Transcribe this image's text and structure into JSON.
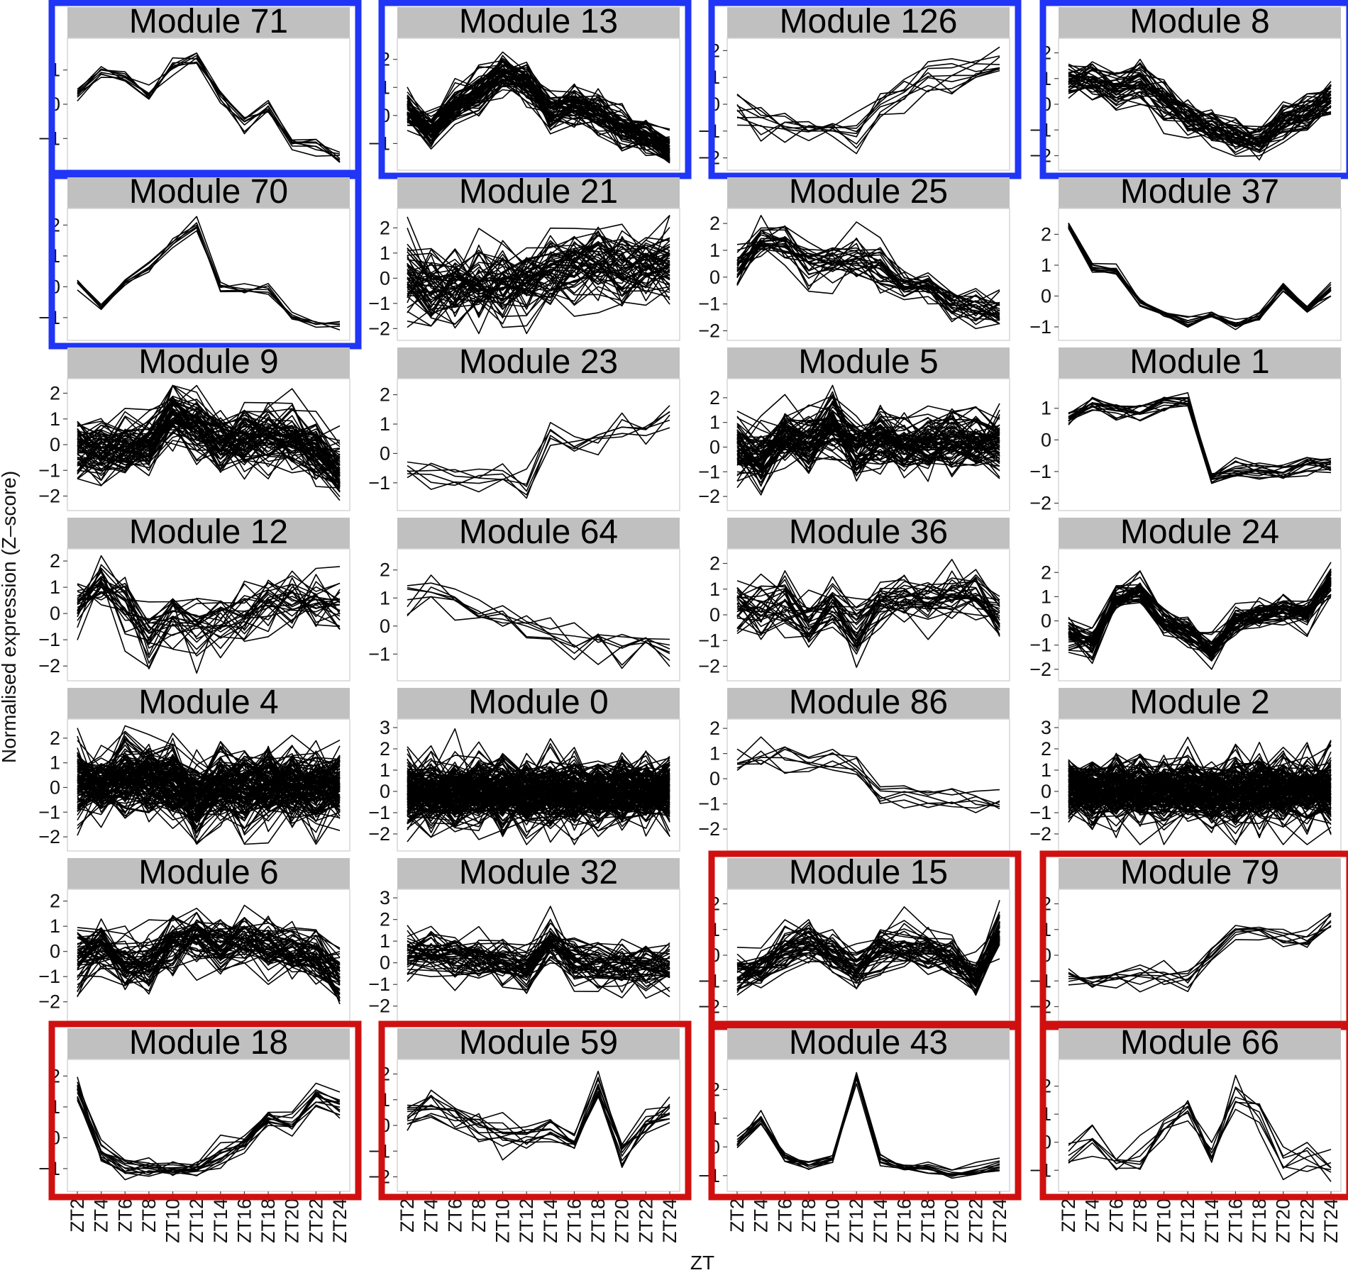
{
  "chart_data": {
    "type": "line",
    "layout": "faceted small multiples, 4 columns x 7 rows",
    "x_ticks": [
      "ZT2",
      "ZT4",
      "ZT6",
      "ZT8",
      "ZT10",
      "ZT12",
      "ZT14",
      "ZT16",
      "ZT18",
      "ZT20",
      "ZT22",
      "ZT24"
    ],
    "xlabel": "ZT",
    "ylabel": "Normalised expression (Z–score)",
    "line_color": "#000000",
    "strip_color": "#c0c0c0",
    "highlight_colors": {
      "blue": "#2035f5",
      "red": "#d01010"
    },
    "grid": false,
    "panels": [
      {
        "title": "Module 71",
        "highlight": "blue",
        "ylim": [
          -1.8,
          1.8
        ],
        "yticks": [
          "1",
          "0",
          "−1"
        ],
        "ytick_values": [
          1,
          0,
          -1
        ],
        "xtick_labels": false,
        "n_lines": 8,
        "noise": 0.18,
        "profile": [
          0.3,
          0.9,
          0.7,
          0.3,
          1.1,
          1.4,
          0.2,
          -0.6,
          -0.1,
          -1.1,
          -1.3,
          -1.6
        ]
      },
      {
        "title": "Module 13",
        "highlight": "blue",
        "ylim": [
          -1.8,
          2.6
        ],
        "yticks": [
          "2",
          "1",
          "0",
          "−1"
        ],
        "ytick_values": [
          2,
          1,
          0,
          -1
        ],
        "xtick_labels": false,
        "n_lines": 60,
        "noise": 0.45,
        "profile": [
          0.2,
          -0.6,
          0.4,
          0.8,
          1.5,
          1.2,
          0.2,
          0.3,
          0.1,
          -0.4,
          -0.8,
          -1.3
        ]
      },
      {
        "title": "Module 126",
        "highlight": "blue",
        "ylim": [
          -2.3,
          2.3
        ],
        "yticks": [
          "2",
          "1",
          "0",
          "−1",
          "−2"
        ],
        "ytick_values": [
          2,
          1,
          0,
          -1,
          -2
        ],
        "xtick_labels": false,
        "n_lines": 9,
        "noise": 0.4,
        "profile": [
          -0.2,
          -0.7,
          -0.8,
          -0.9,
          -0.9,
          -1.0,
          0.0,
          0.4,
          0.8,
          1.1,
          1.3,
          1.6
        ]
      },
      {
        "title": "Module 8",
        "highlight": "blue",
        "ylim": [
          -2.4,
          2.4
        ],
        "yticks": [
          "2",
          "1",
          "0",
          "−1",
          "−2"
        ],
        "ytick_values": [
          2,
          1,
          0,
          -1,
          -2
        ],
        "xtick_labels": false,
        "n_lines": 40,
        "noise": 0.5,
        "profile": [
          0.9,
          1.0,
          0.7,
          0.9,
          0.2,
          -0.4,
          -0.9,
          -1.2,
          -1.4,
          -0.7,
          -0.2,
          0.3
        ]
      },
      {
        "title": "Module 70",
        "highlight": "blue",
        "ylim": [
          -1.6,
          2.4
        ],
        "yticks": [
          "2",
          "1",
          "0",
          "−1"
        ],
        "ytick_values": [
          2,
          1,
          0,
          -1
        ],
        "xtick_labels": false,
        "n_lines": 6,
        "noise": 0.15,
        "profile": [
          0.1,
          -0.7,
          0.1,
          0.6,
          1.4,
          2.0,
          0.0,
          -0.1,
          -0.1,
          -0.9,
          -1.2,
          -1.3
        ]
      },
      {
        "title": "Module 21",
        "highlight": null,
        "ylim": [
          -2.3,
          2.6
        ],
        "yticks": [
          "2",
          "1",
          "0",
          "−1",
          "−2"
        ],
        "ytick_values": [
          2,
          1,
          0,
          -1,
          -2
        ],
        "xtick_labels": false,
        "n_lines": 55,
        "noise": 1.0,
        "profile": [
          0.0,
          -0.6,
          -0.4,
          -0.3,
          -0.2,
          0.0,
          0.2,
          0.5,
          0.6,
          0.4,
          0.4,
          0.5
        ]
      },
      {
        "title": "Module 25",
        "highlight": null,
        "ylim": [
          -2.2,
          2.4
        ],
        "yticks": [
          "2",
          "1",
          "0",
          "−1",
          "−2"
        ],
        "ytick_values": [
          2,
          1,
          0,
          -1,
          -2
        ],
        "xtick_labels": false,
        "n_lines": 28,
        "noise": 0.5,
        "profile": [
          0.4,
          1.4,
          1.3,
          0.6,
          0.6,
          0.8,
          0.4,
          -0.2,
          -0.3,
          -1.0,
          -1.1,
          -1.3
        ]
      },
      {
        "title": "Module 37",
        "highlight": null,
        "ylim": [
          -1.3,
          2.7
        ],
        "yticks": [
          "2",
          "1",
          "0",
          "−1"
        ],
        "ytick_values": [
          2,
          1,
          0,
          -1
        ],
        "xtick_labels": false,
        "n_lines": 10,
        "noise": 0.12,
        "profile": [
          2.3,
          0.9,
          0.8,
          -0.2,
          -0.6,
          -0.9,
          -0.6,
          -0.9,
          -0.7,
          0.3,
          -0.5,
          0.2
        ]
      },
      {
        "title": "Module 9",
        "highlight": null,
        "ylim": [
          -2.4,
          2.4
        ],
        "yticks": [
          "2",
          "1",
          "0",
          "−1",
          "−2"
        ],
        "ytick_values": [
          2,
          1,
          0,
          -1,
          -2
        ],
        "xtick_labels": false,
        "n_lines": 70,
        "noise": 0.8,
        "profile": [
          -0.3,
          -0.2,
          -0.1,
          0.1,
          1.2,
          0.7,
          0.0,
          0.3,
          0.3,
          0.2,
          -0.2,
          -1.0
        ]
      },
      {
        "title": "Module 23",
        "highlight": null,
        "ylim": [
          -1.8,
          2.4
        ],
        "yticks": [
          "2",
          "1",
          "0",
          "−1"
        ],
        "ytick_values": [
          2,
          1,
          0,
          -1
        ],
        "xtick_labels": false,
        "n_lines": 6,
        "noise": 0.35,
        "profile": [
          -0.6,
          -0.8,
          -0.9,
          -0.7,
          -0.9,
          -1.1,
          0.6,
          0.4,
          0.6,
          0.9,
          0.8,
          1.3
        ]
      },
      {
        "title": "Module 5",
        "highlight": null,
        "ylim": [
          -2.4,
          2.6
        ],
        "yticks": [
          "2",
          "1",
          "0",
          "−1",
          "−2"
        ],
        "ytick_values": [
          2,
          1,
          0,
          -1,
          -2
        ],
        "xtick_labels": false,
        "n_lines": 70,
        "noise": 0.8,
        "profile": [
          0.0,
          -0.4,
          0.3,
          0.2,
          0.9,
          -0.2,
          0.3,
          0.0,
          0.2,
          0.3,
          0.3,
          0.2
        ]
      },
      {
        "title": "Module 1",
        "highlight": null,
        "ylim": [
          -2.1,
          1.8
        ],
        "yticks": [
          "1",
          "0",
          "−1",
          "−2"
        ],
        "ytick_values": [
          1,
          0,
          -1,
          -2
        ],
        "xtick_labels": false,
        "n_lines": 14,
        "noise": 0.2,
        "profile": [
          0.7,
          1.1,
          0.9,
          0.8,
          1.1,
          1.2,
          -1.2,
          -0.9,
          -1.0,
          -1.0,
          -0.8,
          -0.8
        ]
      },
      {
        "title": "Module 12",
        "highlight": null,
        "ylim": [
          -2.4,
          2.3
        ],
        "yticks": [
          "2",
          "1",
          "0",
          "−1",
          "−2"
        ],
        "ytick_values": [
          2,
          1,
          0,
          -1,
          -2
        ],
        "xtick_labels": false,
        "n_lines": 26,
        "noise": 0.8,
        "profile": [
          0.3,
          1.2,
          0.3,
          -0.7,
          0.0,
          -0.5,
          -0.2,
          0.0,
          0.3,
          0.5,
          0.6,
          0.4
        ]
      },
      {
        "title": "Module 64",
        "highlight": null,
        "ylim": [
          -1.8,
          2.6
        ],
        "yticks": [
          "2",
          "1",
          "0",
          "−1"
        ],
        "ytick_values": [
          2,
          1,
          0,
          -1
        ],
        "xtick_labels": false,
        "n_lines": 7,
        "noise": 0.45,
        "profile": [
          0.9,
          1.2,
          0.7,
          0.4,
          0.2,
          0.1,
          -0.3,
          -0.5,
          -0.5,
          -0.7,
          -0.6,
          -1.0
        ]
      },
      {
        "title": "Module 36",
        "highlight": null,
        "ylim": [
          -2.4,
          2.4
        ],
        "yticks": [
          "2",
          "1",
          "0",
          "−1",
          "−2"
        ],
        "ytick_values": [
          2,
          1,
          0,
          -1,
          -2
        ],
        "xtick_labels": false,
        "n_lines": 30,
        "noise": 0.7,
        "profile": [
          0.3,
          0.2,
          0.5,
          -0.5,
          0.3,
          -0.7,
          0.5,
          0.6,
          0.6,
          0.8,
          0.7,
          -0.1
        ]
      },
      {
        "title": "Module 24",
        "highlight": null,
        "ylim": [
          -2.3,
          2.8
        ],
        "yticks": [
          "2",
          "1",
          "0",
          "−1",
          "−2"
        ],
        "ytick_values": [
          2,
          1,
          0,
          -1,
          -2
        ],
        "xtick_labels": false,
        "n_lines": 40,
        "noise": 0.45,
        "profile": [
          -0.6,
          -1.0,
          0.8,
          1.2,
          0.0,
          -0.4,
          -1.2,
          0.0,
          0.3,
          0.4,
          0.3,
          1.6
        ]
      },
      {
        "title": "Module 4",
        "highlight": null,
        "ylim": [
          -2.4,
          2.6
        ],
        "yticks": [
          "2",
          "1",
          "0",
          "−1",
          "−2"
        ],
        "ytick_values": [
          2,
          1,
          0,
          -1,
          -2
        ],
        "xtick_labels": false,
        "n_lines": 120,
        "noise": 1.0,
        "profile": [
          0.2,
          0.1,
          0.3,
          0.4,
          0.3,
          -0.6,
          0.1,
          -0.1,
          0.0,
          0.0,
          0.0,
          0.3
        ]
      },
      {
        "title": "Module 0",
        "highlight": null,
        "ylim": [
          -2.6,
          3.2
        ],
        "yticks": [
          "3",
          "2",
          "1",
          "0",
          "−1",
          "−2"
        ],
        "ytick_values": [
          3,
          2,
          1,
          0,
          -1,
          -2
        ],
        "xtick_labels": false,
        "n_lines": 160,
        "noise": 1.05,
        "profile": [
          0.0,
          0.0,
          0.0,
          0.0,
          0.0,
          0.0,
          0.0,
          0.0,
          0.0,
          0.0,
          0.0,
          0.0
        ]
      },
      {
        "title": "Module 86",
        "highlight": null,
        "ylim": [
          -2.7,
          2.2
        ],
        "yticks": [
          "2",
          "1",
          "0",
          "−1",
          "−2"
        ],
        "ytick_values": [
          2,
          1,
          0,
          -1,
          -2
        ],
        "xtick_labels": false,
        "n_lines": 7,
        "noise": 0.4,
        "profile": [
          0.7,
          0.9,
          0.8,
          0.6,
          0.8,
          0.6,
          -0.5,
          -0.5,
          -0.8,
          -0.7,
          -1.0,
          -1.1
        ]
      },
      {
        "title": "Module 2",
        "highlight": null,
        "ylim": [
          -2.6,
          3.2
        ],
        "yticks": [
          "3",
          "2",
          "1",
          "0",
          "−1",
          "−2"
        ],
        "ytick_values": [
          3,
          2,
          1,
          0,
          -1,
          -2
        ],
        "xtick_labels": false,
        "n_lines": 150,
        "noise": 1.05,
        "profile": [
          0.1,
          0.0,
          0.0,
          0.0,
          0.0,
          0.0,
          -0.1,
          0.0,
          0.0,
          0.0,
          0.0,
          0.1
        ]
      },
      {
        "title": "Module 6",
        "highlight": null,
        "ylim": [
          -2.6,
          2.3
        ],
        "yticks": [
          "2",
          "1",
          "0",
          "−1",
          "−2"
        ],
        "ytick_values": [
          2,
          1,
          0,
          -1,
          -2
        ],
        "xtick_labels": false,
        "n_lines": 55,
        "noise": 0.75,
        "profile": [
          -0.2,
          0.2,
          -0.5,
          -0.4,
          0.5,
          0.7,
          0.2,
          0.6,
          0.2,
          0.0,
          -0.1,
          -0.9
        ]
      },
      {
        "title": "Module 32",
        "highlight": null,
        "ylim": [
          -2.5,
          3.2
        ],
        "yticks": [
          "3",
          "2",
          "1",
          "0",
          "−1",
          "−2"
        ],
        "ytick_values": [
          3,
          2,
          1,
          0,
          -1,
          -2
        ],
        "xtick_labels": false,
        "n_lines": 45,
        "noise": 0.7,
        "profile": [
          0.3,
          0.4,
          0.2,
          0.2,
          0.1,
          -0.2,
          0.9,
          0.1,
          0.0,
          -0.1,
          -0.2,
          -0.3
        ]
      },
      {
        "title": "Module 15",
        "highlight": "red",
        "ylim": [
          -2.4,
          2.4
        ],
        "yticks": [
          "2",
          "1",
          "0",
          "−1",
          "−2"
        ],
        "ytick_values": [
          2,
          1,
          0,
          -1,
          -2
        ],
        "xtick_labels": false,
        "n_lines": 40,
        "noise": 0.55,
        "profile": [
          -0.8,
          -0.5,
          0.3,
          0.6,
          0.2,
          -0.6,
          0.2,
          0.3,
          0.2,
          0.0,
          -1.0,
          1.0
        ]
      },
      {
        "title": "Module 79",
        "highlight": "red",
        "ylim": [
          -2.4,
          2.4
        ],
        "yticks": [
          "2",
          "1",
          "0",
          "−1",
          "−2"
        ],
        "ytick_values": [
          2,
          1,
          0,
          -1,
          -2
        ],
        "xtick_labels": false,
        "n_lines": 8,
        "noise": 0.3,
        "profile": [
          -0.8,
          -1.0,
          -0.8,
          -0.8,
          -0.9,
          -1.0,
          0.0,
          1.0,
          0.8,
          0.7,
          0.6,
          1.3
        ]
      },
      {
        "title": "Module 18",
        "highlight": "red",
        "ylim": [
          -1.6,
          2.4
        ],
        "yticks": [
          "2",
          "1",
          "0",
          "−1"
        ],
        "ytick_values": [
          2,
          1,
          0,
          -1
        ],
        "xtick_labels": true,
        "n_lines": 14,
        "noise": 0.25,
        "profile": [
          1.5,
          -0.5,
          -1.0,
          -1.0,
          -1.1,
          -1.0,
          -0.6,
          -0.2,
          0.5,
          0.4,
          1.3,
          0.9
        ]
      },
      {
        "title": "Module 59",
        "highlight": "red",
        "ylim": [
          -2.4,
          2.4
        ],
        "yticks": [
          "2",
          "1",
          "0",
          "−1",
          "−2"
        ],
        "ytick_values": [
          2,
          1,
          0,
          -1,
          -2
        ],
        "xtick_labels": true,
        "n_lines": 12,
        "noise": 0.45,
        "profile": [
          0.3,
          0.8,
          0.3,
          0.0,
          -0.5,
          -0.6,
          -0.2,
          -0.7,
          1.6,
          -1.0,
          0.0,
          0.4
        ]
      },
      {
        "title": "Module 43",
        "highlight": "red",
        "ylim": [
          -1.4,
          2.9
        ],
        "yticks": [
          "2",
          "1",
          "0",
          "−1"
        ],
        "ytick_values": [
          2,
          1,
          0,
          -1
        ],
        "xtick_labels": true,
        "n_lines": 10,
        "noise": 0.15,
        "profile": [
          0.1,
          1.0,
          -0.4,
          -0.7,
          -0.4,
          2.4,
          -0.4,
          -0.7,
          -0.7,
          -0.9,
          -0.8,
          -0.7
        ]
      },
      {
        "title": "Module 66",
        "highlight": "red",
        "ylim": [
          -1.6,
          2.8
        ],
        "yticks": [
          "2",
          "1",
          "0",
          "−1"
        ],
        "ytick_values": [
          2,
          1,
          0,
          -1
        ],
        "xtick_labels": true,
        "n_lines": 7,
        "noise": 0.45,
        "profile": [
          -0.5,
          0.4,
          -0.6,
          -0.6,
          0.6,
          1.5,
          -0.4,
          1.8,
          1.1,
          -0.7,
          -0.5,
          -0.9
        ]
      }
    ]
  }
}
